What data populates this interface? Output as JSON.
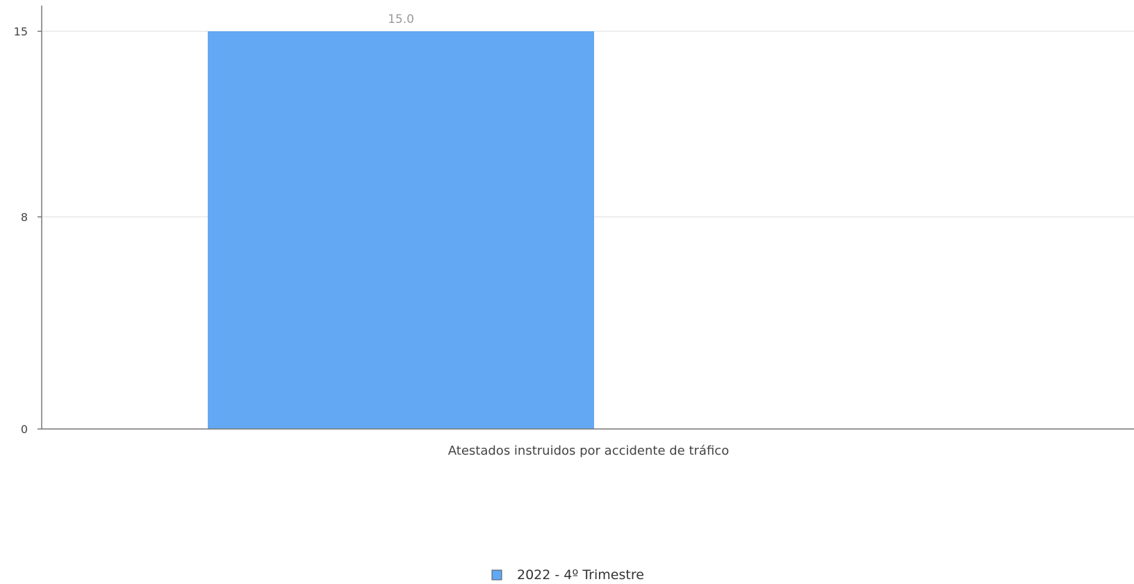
{
  "chart_data": {
    "type": "bar",
    "categories": [
      "Atestados instruidos por accidente de tráfico"
    ],
    "series": [
      {
        "name": "2022 - 4º Trimestre",
        "values": [
          15.0
        ],
        "color": "#62a8f3"
      }
    ],
    "data_labels": [
      "15.0"
    ],
    "yticks": [
      0,
      8,
      15
    ],
    "ylim": [
      0,
      15
    ],
    "grid": true,
    "legend_position": "bottom-center",
    "title": "",
    "xlabel": "",
    "ylabel": ""
  }
}
